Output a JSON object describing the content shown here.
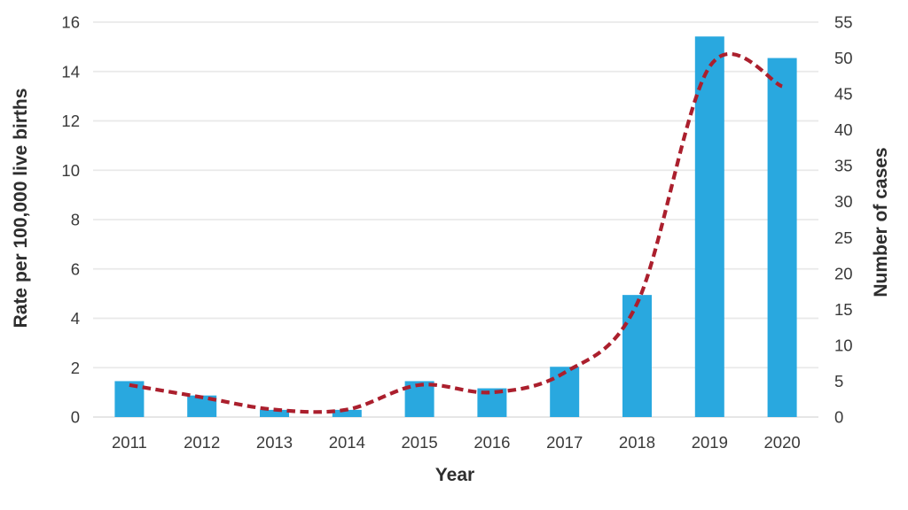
{
  "page": {
    "background": "#ffffff"
  },
  "chart_data": {
    "type": "combo",
    "title": "",
    "categories": [
      "2011",
      "2012",
      "2013",
      "2014",
      "2015",
      "2016",
      "2017",
      "2018",
      "2019",
      "2020"
    ],
    "series": [
      {
        "name": "Number of cases",
        "kind": "bar",
        "axis": "right",
        "values": [
          5,
          3,
          1,
          1,
          5,
          4,
          7,
          17,
          53,
          50
        ],
        "color": "#29a8df"
      },
      {
        "name": "Rate per 100,000 live births",
        "kind": "line",
        "axis": "left",
        "line_style": "dashed",
        "smooth": true,
        "values": [
          1.3,
          0.8,
          0.3,
          0.3,
          1.3,
          1.0,
          1.8,
          4.6,
          14.2,
          13.4
        ],
        "color": "#ab1f2d"
      }
    ],
    "xlabel": "Year",
    "left_axis": {
      "label": "Rate per 100,000 live births",
      "min": 0,
      "max": 16,
      "step": 2,
      "ticks": [
        "0",
        "2",
        "4",
        "6",
        "8",
        "10",
        "12",
        "14",
        "16"
      ]
    },
    "right_axis": {
      "label": "Number of cases",
      "min": 0,
      "max": 55,
      "step": 5,
      "ticks": [
        "0",
        "5",
        "10",
        "15",
        "20",
        "25",
        "30",
        "35",
        "40",
        "45",
        "50",
        "55"
      ]
    },
    "grid": true,
    "legend_position": "none",
    "colors": {
      "bar": "#29a8df",
      "line": "#ab1f2d",
      "grid": "#e9e9e9",
      "text": "#3a3a3a"
    }
  }
}
